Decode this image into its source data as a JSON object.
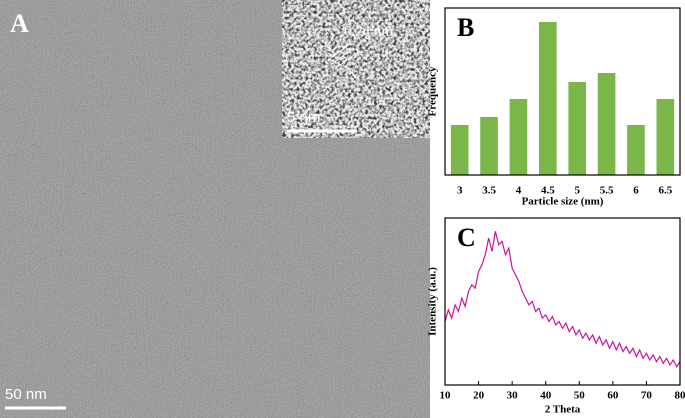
{
  "image_panel": {
    "label": "A",
    "inset_annotation": "0.24 nm",
    "inset_scale_bar": "5 nm",
    "scale_bar": "50 nm"
  },
  "chart_data": [
    {
      "type": "bar",
      "label": "B",
      "x_label": "Particle size (nm)",
      "y_label": "Frequency",
      "categories": [
        "3",
        "3.5",
        "4",
        "4.5",
        "5",
        "5.5",
        "6",
        "6.5"
      ],
      "values": [
        5,
        5.8,
        7.6,
        15.3,
        9.3,
        10.2,
        5,
        7.6
      ],
      "color": "#7ab648",
      "ylim": [
        0,
        16.7
      ]
    },
    {
      "type": "line",
      "label": "C",
      "x_label": "2 Theta",
      "y_label": "Intensity (a.u.)",
      "color": "#cc1496",
      "x": [
        10,
        11,
        12,
        13,
        14,
        15,
        16,
        17,
        18,
        19,
        20,
        21,
        22,
        23,
        24,
        25,
        26,
        27,
        28,
        29,
        30,
        31,
        32,
        33,
        34,
        35,
        36,
        37,
        38,
        39,
        40,
        41,
        42,
        43,
        44,
        45,
        46,
        47,
        48,
        49,
        50,
        51,
        52,
        53,
        54,
        55,
        56,
        57,
        58,
        59,
        60,
        61,
        62,
        63,
        64,
        65,
        66,
        67,
        68,
        69,
        70,
        71,
        72,
        73,
        74,
        75,
        76,
        77,
        78,
        79,
        80
      ],
      "values": [
        38,
        45,
        40,
        48,
        44,
        52,
        47,
        56,
        60,
        58,
        68,
        72,
        78,
        88,
        80,
        92,
        84,
        86,
        78,
        82,
        70,
        66,
        62,
        56,
        52,
        48,
        50,
        44,
        46,
        40,
        42,
        38,
        41,
        36,
        38,
        34,
        37,
        32,
        35,
        30,
        33,
        28,
        31,
        27,
        30,
        25,
        29,
        24,
        27,
        22,
        26,
        21,
        25,
        20,
        23,
        19,
        22,
        17,
        21,
        16,
        19,
        15,
        18,
        14,
        17,
        13,
        16,
        12,
        15,
        11,
        14
      ],
      "xlim": [
        10,
        80
      ],
      "xticks": [
        10,
        20,
        30,
        40,
        50,
        60,
        70,
        80
      ],
      "ylim": [
        0,
        100
      ]
    }
  ]
}
